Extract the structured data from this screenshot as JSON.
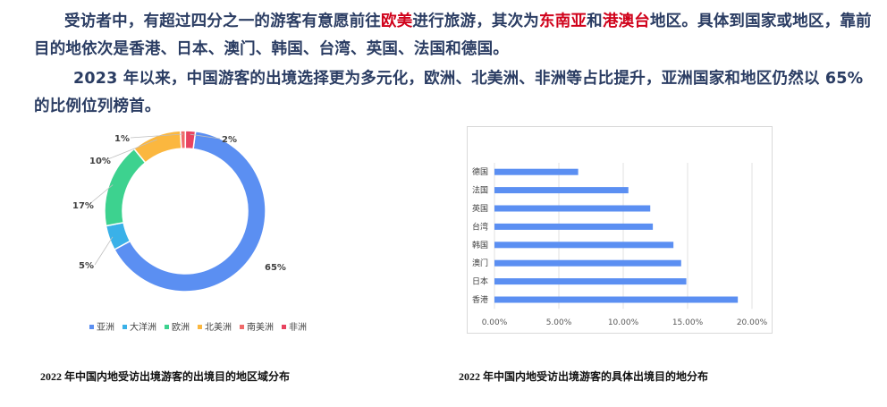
{
  "text": {
    "p1": {
      "a": "受访者中，有超过四分之一的游客有意愿前往",
      "h1": "欧美",
      "b": "进行旅游，其次为",
      "h2": "东南亚",
      "c": "和",
      "h3": "港澳台",
      "d": "地区。具体到国家或地区，靠前目的地依次是香港、日本、澳门、韩国、台湾、英国、法国和德国。"
    },
    "p2": "2023 年以来，中国游客的出境选择更为多元化，欧洲、北美洲、非洲等占比提升，亚洲国家和地区仍然以 65%的比例位列榜首。"
  },
  "captions": {
    "left": "2022 年中国内地受访出境游客的出境目的地区域分布",
    "right": "2022 年中国内地受访出境游客的具体出境目的地分布"
  },
  "colors": {
    "asia": "#5b8ff2",
    "oceania": "#3ab1e8",
    "europe": "#3dd28f",
    "north_america": "#fbb73f",
    "south_america": "#f06a6a",
    "africa": "#e8435f",
    "bar": "#5b8ff2",
    "highlight": "#d0021b"
  },
  "chart_data": [
    {
      "type": "pie",
      "subtype": "donut",
      "categories": [
        "亚洲",
        "大洋洲",
        "欧洲",
        "北美洲",
        "南美洲",
        "非洲"
      ],
      "values": [
        65,
        5,
        17,
        10,
        1,
        2
      ],
      "labels": [
        "65%",
        "5%",
        "17%",
        "10%",
        "1%",
        "2%"
      ],
      "legend_position": "bottom"
    },
    {
      "type": "bar",
      "orientation": "horizontal",
      "categories": [
        "香港",
        "日本",
        "澳门",
        "韩国",
        "台湾",
        "英国",
        "法国",
        "德国"
      ],
      "values": [
        18.9,
        14.9,
        14.5,
        13.9,
        12.3,
        12.1,
        10.4,
        6.5
      ],
      "xlim": [
        0,
        20
      ],
      "xticks": [
        "0.00%",
        "5.00%",
        "10.00%",
        "15.00%",
        "20.00%"
      ],
      "grid": true
    }
  ]
}
